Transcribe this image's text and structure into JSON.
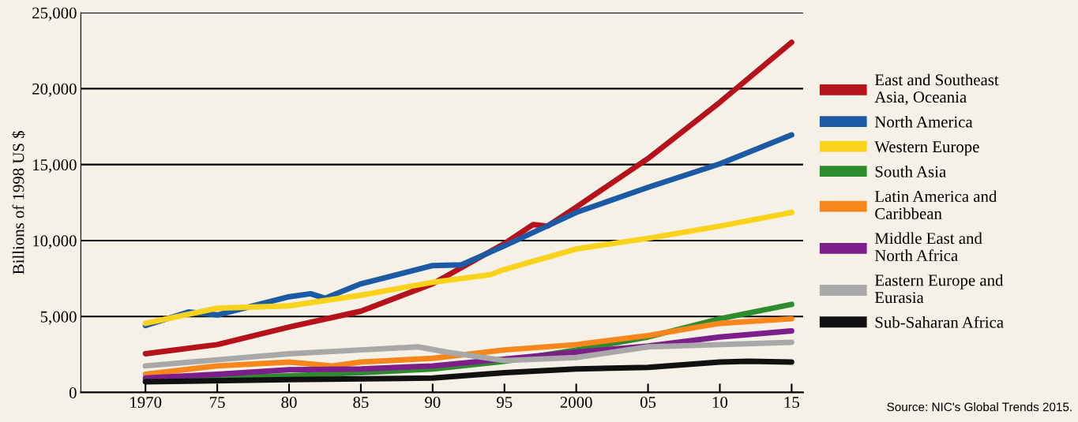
{
  "chart_data": {
    "type": "line",
    "ylabel": "Billions of 1998 US $",
    "series": [
      {
        "name": "East and Southeast Asia, Oceania",
        "color": "#b5121b",
        "x": [
          1970,
          1975,
          1980,
          1985,
          1990,
          1995,
          1997,
          1998,
          2000,
          2005,
          2010,
          2015
        ],
        "values": [
          2550,
          3150,
          4300,
          5350,
          7150,
          9800,
          11050,
          10950,
          12200,
          15400,
          19100,
          23050
        ]
      },
      {
        "name": "North America",
        "color": "#1d5aa6",
        "x": [
          1970,
          1973,
          1975,
          1980,
          1981.5,
          1982.5,
          1985,
          1990,
          1992,
          1995,
          2000,
          2005,
          2010,
          2015
        ],
        "values": [
          4400,
          5300,
          5100,
          6300,
          6500,
          6200,
          7150,
          8350,
          8400,
          9650,
          11850,
          13500,
          15050,
          16950
        ]
      },
      {
        "name": "Western Europe",
        "color": "#f9d21c",
        "x": [
          1970,
          1975,
          1980,
          1985,
          1990,
          1994,
          1995,
          2000,
          2005,
          2010,
          2015
        ],
        "values": [
          4550,
          5550,
          5700,
          6400,
          7250,
          7750,
          8100,
          9450,
          10150,
          10950,
          11850
        ]
      },
      {
        "name": "South Asia",
        "color": "#2e8b2e",
        "x": [
          1970,
          1980,
          1985,
          1990,
          1995,
          2000,
          2005,
          2010,
          2015
        ],
        "values": [
          850,
          1100,
          1300,
          1550,
          2050,
          2800,
          3650,
          4850,
          5800
        ]
      },
      {
        "name": "Latin America and Caribbean",
        "color": "#f7861c",
        "x": [
          1970,
          1975,
          1980,
          1983,
          1985,
          1990,
          1995,
          2000,
          2005,
          2010,
          2015
        ],
        "values": [
          1200,
          1750,
          2000,
          1750,
          2000,
          2250,
          2800,
          3150,
          3750,
          4550,
          4850
        ]
      },
      {
        "name": "Middle East and North Africa",
        "color": "#7d1f8a",
        "x": [
          1970,
          1975,
          1980,
          1985,
          1990,
          2000,
          2005,
          2010,
          2015
        ],
        "values": [
          950,
          1200,
          1500,
          1550,
          1750,
          2650,
          3050,
          3650,
          4050
        ]
      },
      {
        "name": "Eastern Europe and Eurasia",
        "color": "#a8a8a8",
        "x": [
          1970,
          1975,
          1980,
          1985,
          1989,
          1991,
          1995,
          2000,
          2005,
          2010,
          2015
        ],
        "values": [
          1750,
          2150,
          2550,
          2800,
          3000,
          2650,
          2100,
          2300,
          3000,
          3150,
          3300
        ]
      },
      {
        "name": "Sub-Saharan Africa",
        "color": "#111111",
        "x": [
          1970,
          1980,
          1990,
          1995,
          2000,
          2005,
          2010,
          2012,
          2015
        ],
        "values": [
          700,
          850,
          950,
          1300,
          1550,
          1650,
          2000,
          2050,
          2000
        ]
      }
    ],
    "xlim": [
      1965.5,
      2015.8
    ],
    "xticks": [
      {
        "value": 1970,
        "label": "1970"
      },
      {
        "value": 1975,
        "label": "75"
      },
      {
        "value": 1980,
        "label": "80"
      },
      {
        "value": 1985,
        "label": "85"
      },
      {
        "value": 1990,
        "label": "90"
      },
      {
        "value": 1995,
        "label": "95"
      },
      {
        "value": 2000,
        "label": "2000"
      },
      {
        "value": 2005,
        "label": "05"
      },
      {
        "value": 2010,
        "label": "10"
      },
      {
        "value": 2015,
        "label": "15"
      }
    ],
    "ylim": [
      0,
      25000
    ],
    "yticks": [
      0,
      {
        "value": 5000,
        "label": "5,000"
      },
      {
        "value": 10000,
        "label": "10,000"
      },
      {
        "value": 15000,
        "label": "15,000"
      },
      {
        "value": 20000,
        "label": "20,000"
      },
      {
        "value": 25000,
        "label": "25,000"
      }
    ],
    "grid": "y",
    "legend": "right",
    "marker": "none",
    "line_style": "solid",
    "annotations": [
      "Source: NIC's Global Trends 2015."
    ]
  }
}
